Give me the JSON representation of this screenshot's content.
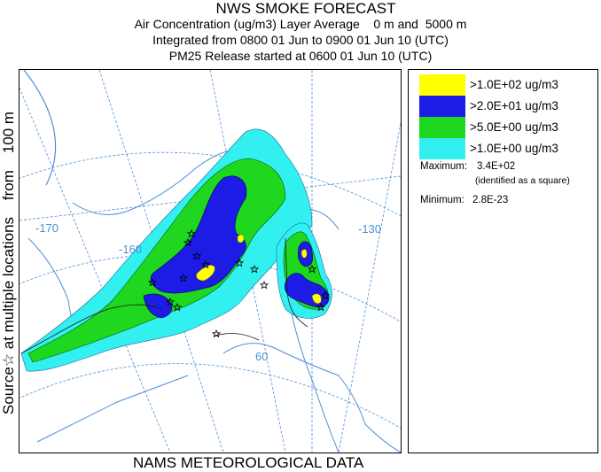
{
  "header": {
    "title": "NWS SMOKE FORECAST",
    "line2": "Air Concentration (ug/m3) Layer Average    0 m and  5000 m",
    "line3": "Integrated from 0800 01 Jun to 0900 01 Jun 10 (UTC)",
    "line4": "PM25 Release started at 0600 01 Jun 10 (UTC)"
  },
  "left_label": "Source☆ at multiple locations    from    100 m",
  "bottom_label": "NAMS METEOROLOGICAL DATA",
  "map": {
    "longitude_labels": [
      "-170",
      "-160",
      "-130"
    ],
    "latitude_labels": [
      "60"
    ]
  },
  "legend": {
    "items": [
      {
        "label": ">1.0E+02 ug/m3",
        "color": "#ffff00"
      },
      {
        "label": ">2.0E+01 ug/m3",
        "color": "#1c1ce6"
      },
      {
        "label": ">5.0E+00 ug/m3",
        "color": "#1ed71e"
      },
      {
        "label": ">1.0E+00 ug/m3",
        "color": "#33f0f0"
      }
    ],
    "maximum_label": "Maximum:",
    "maximum_value": "3.4E+02",
    "maximum_note": "(identified as a square)",
    "minimum_label": "Minimum:",
    "minimum_value": "2.8E-23"
  },
  "colors": {
    "cyan": "#33f0f0",
    "green": "#1ed71e",
    "blue": "#1c1ce6",
    "yellow": "#ffff00",
    "graticule": "#4a8fd6"
  }
}
